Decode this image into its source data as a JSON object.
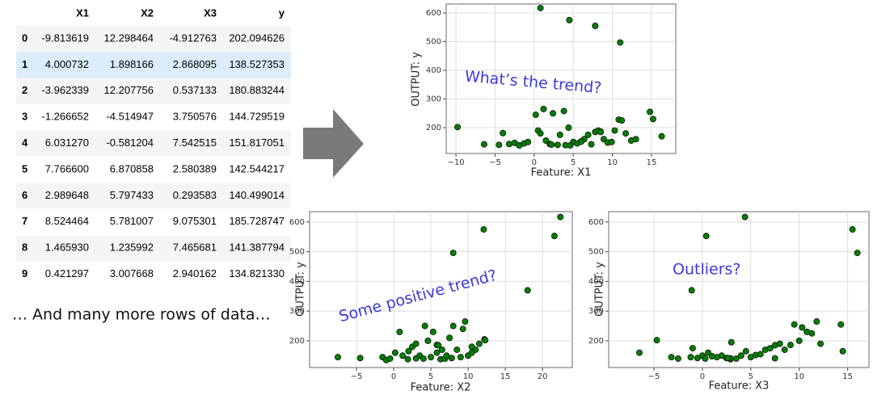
{
  "table": {
    "columns": [
      "",
      "X1",
      "X2",
      "X3",
      "y"
    ],
    "rows": [
      [
        "0",
        "-9.813619",
        "12.298464",
        "-4.912763",
        "202.094626"
      ],
      [
        "1",
        "4.000732",
        "1.898166",
        "2.868095",
        "138.527353"
      ],
      [
        "2",
        "-3.962339",
        "12.207756",
        "0.537133",
        "180.883244"
      ],
      [
        "3",
        "-1.266652",
        "-4.514947",
        "3.750576",
        "144.729519"
      ],
      [
        "4",
        "6.031270",
        "-0.581204",
        "7.542515",
        "151.817051"
      ],
      [
        "5",
        "7.766600",
        "6.870858",
        "2.580389",
        "142.544217"
      ],
      [
        "6",
        "2.989648",
        "5.797433",
        "0.293583",
        "140.499014"
      ],
      [
        "7",
        "8.524464",
        "5.781007",
        "9.075301",
        "185.728747"
      ],
      [
        "8",
        "1.465930",
        "1.235992",
        "7.465681",
        "141.387794"
      ],
      [
        "9",
        "0.421297",
        "3.007668",
        "2.940162",
        "134.821330"
      ]
    ]
  },
  "caption": "… And many more rows of data…",
  "chart_data": [
    {
      "type": "scatter",
      "annotation": "What’s the trend?",
      "x_label": "Feature: X1",
      "y_label": "OUTPUT: y",
      "grid": true,
      "xlim": [
        -11.25,
        18.1
      ],
      "ylim": [
        110,
        631
      ],
      "xticks": [
        {
          "value": -10,
          "label": "−10"
        },
        {
          "value": -5,
          "label": "−5"
        },
        0,
        5,
        10,
        15
      ],
      "yticks": [
        200,
        300,
        400,
        500,
        600
      ],
      "series": [
        {
          "color": "#008000",
          "x": [
            -9.8,
            -6.4,
            -4.5,
            -4.0,
            -3.2,
            -2.5,
            -1.9,
            -1.3,
            -0.8,
            0.2,
            0.5,
            0.8,
            1.2,
            1.5,
            2.0,
            2.4,
            3.0,
            3.3,
            3.8,
            4.0,
            4.4,
            5.0,
            5.5,
            6.0,
            6.4,
            6.9,
            7.3,
            7.8,
            8.2,
            8.5,
            8.9,
            9.4,
            9.9,
            10.3,
            10.8,
            11.2,
            11.7,
            12.4,
            14.8,
            15.2,
            16.3,
            0.8,
            4.5,
            7.8,
            11.0,
            2.2,
            6.0,
            4.6,
            8.5,
            13.0
          ],
          "values": [
            202,
            142,
            140,
            181,
            143,
            147,
            138,
            145,
            150,
            245,
            190,
            180,
            265,
            155,
            143,
            250,
            140,
            175,
            258,
            139,
            200,
            150,
            145,
            152,
            160,
            175,
            142,
            185,
            190,
            186,
            160,
            148,
            150,
            190,
            228,
            225,
            180,
            155,
            255,
            230,
            170,
            617,
            575,
            555,
            497,
            141,
            151,
            138,
            185,
            160
          ]
        }
      ]
    },
    {
      "type": "scatter",
      "annotation": "Some positive trend?",
      "x_label": "Feature: X2",
      "y_label": "OUTPUT: y",
      "grid": true,
      "xlim": [
        -11.3,
        24.0
      ],
      "ylim": [
        110,
        635
      ],
      "xticks": [
        {
          "value": -5,
          "label": "−5"
        },
        0,
        5,
        10,
        15,
        20
      ],
      "yticks": [
        200,
        300,
        400,
        500,
        600
      ],
      "series": [
        {
          "color": "#008000",
          "x": [
            -7.5,
            -4.5,
            -1.5,
            -1,
            -0.5,
            0.2,
            0.8,
            1.2,
            1.9,
            2.5,
            3.0,
            3.5,
            4.0,
            4.2,
            4.6,
            5.0,
            5.3,
            5.8,
            5.8,
            6.0,
            6.3,
            6.9,
            7.1,
            7.5,
            8.0,
            8.5,
            9.0,
            9.3,
            9.6,
            10.0,
            10.5,
            11.0,
            11.5,
            12.2,
            12.3,
            3.0,
            6.5,
            22.4,
            21.6,
            12.1,
            8.0,
            18.0,
            2.0,
            7.8,
            10.5
          ],
          "values": [
            145,
            142,
            145,
            135,
            140,
            160,
            230,
            150,
            138,
            180,
            190,
            150,
            140,
            250,
            200,
            145,
            230,
            160,
            186,
            185,
            138,
            140,
            150,
            210,
            250,
            170,
            145,
            240,
            265,
            150,
            180,
            170,
            190,
            205,
            202,
            141,
            170,
            617,
            553,
            575,
            496,
            370,
            165,
            142,
            160
          ]
        }
      ]
    },
    {
      "type": "scatter",
      "annotation": "Outliers?",
      "x_label": "Feature: X3",
      "y_label": "OUTPUT: y",
      "grid": true,
      "xlim": [
        -9.67,
        17.2
      ],
      "ylim": [
        110,
        635
      ],
      "xticks": [
        {
          "value": -5,
          "label": "−5"
        },
        0,
        5,
        10,
        15
      ],
      "yticks": [
        200,
        300,
        400,
        500,
        600
      ],
      "series": [
        {
          "color": "#008000",
          "x": [
            -6.5,
            -4.7,
            -3.2,
            -2.5,
            -1.2,
            -1.0,
            -0.5,
            0,
            0.3,
            0.6,
            1.0,
            1.5,
            2.0,
            2.5,
            2.9,
            3.5,
            4.0,
            4.5,
            5.0,
            5.5,
            6.0,
            6.5,
            7.0,
            7.5,
            7.5,
            8.0,
            8.5,
            9.1,
            9.5,
            10,
            10.3,
            10.8,
            11.3,
            11.8,
            12.2,
            14.3,
            14.5,
            2.9,
            2.6,
            4.4,
            0.4,
            15.5,
            16.0,
            -1.1,
            3.0
          ],
          "values": [
            160,
            202,
            145,
            140,
            145,
            175,
            142,
            150,
            140,
            160,
            148,
            145,
            150,
            142,
            138,
            140,
            150,
            165,
            145,
            152,
            155,
            170,
            175,
            185,
            141,
            190,
            170,
            186,
            255,
            200,
            245,
            230,
            225,
            265,
            190,
            255,
            165,
            141,
            142,
            617,
            553,
            575,
            496,
            370,
            195
          ]
        }
      ]
    }
  ]
}
